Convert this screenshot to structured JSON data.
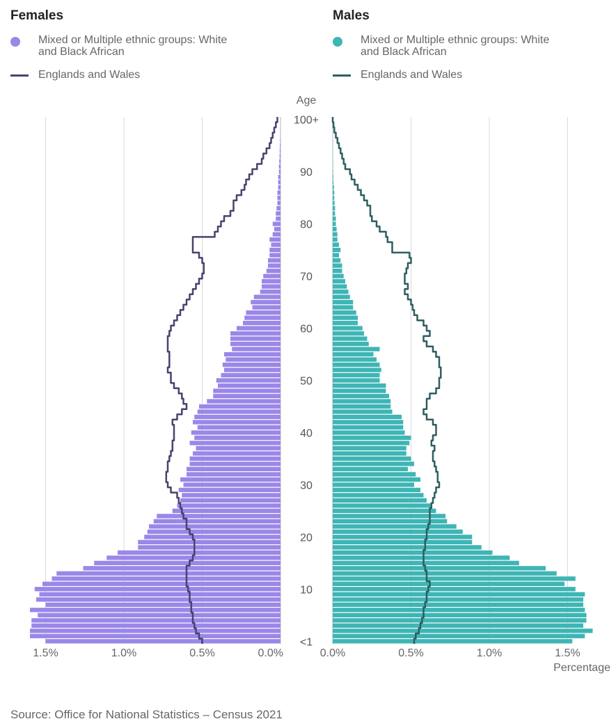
{
  "panels": {
    "females": {
      "title": "Females",
      "legend_group": "Mixed or Multiple ethnic groups: White and Black African",
      "legend_reference": "Englands and Wales",
      "bar_color": "#9b87e8",
      "line_color": "#4b416e"
    },
    "males": {
      "title": "Males",
      "legend_group": "Mixed or Multiple ethnic groups: White and Black African",
      "legend_reference": "Englands and Wales",
      "bar_color": "#3fb5b5",
      "line_color": "#2e5e60"
    }
  },
  "axis": {
    "age_label": "Age",
    "x_label": "Percentage"
  },
  "source": "Source: Office for National Statistics – Census 2021",
  "chart_data": {
    "type": "bar",
    "orientation": "horizontal-population-pyramid",
    "age_ticks": [
      "<1",
      "10",
      "20",
      "30",
      "40",
      "50",
      "60",
      "70",
      "80",
      "90",
      "100+"
    ],
    "x_ticks_females": [
      "1.5%",
      "1.0%",
      "0.5%",
      "0.0%"
    ],
    "x_ticks_males": [
      "0.0%",
      "0.5%",
      "1.0%",
      "1.5%"
    ],
    "xlim": [
      0,
      1.75
    ],
    "grid": true,
    "ages_note": "index 0 = age <1, index 100 = age 100+",
    "female_group": [
      1.5,
      1.6,
      1.6,
      1.59,
      1.59,
      1.55,
      1.6,
      1.5,
      1.56,
      1.54,
      1.57,
      1.52,
      1.46,
      1.43,
      1.26,
      1.19,
      1.11,
      1.04,
      0.91,
      0.91,
      0.87,
      0.85,
      0.84,
      0.81,
      0.79,
      0.69,
      0.66,
      0.64,
      0.63,
      0.65,
      0.62,
      0.64,
      0.6,
      0.6,
      0.58,
      0.58,
      0.56,
      0.54,
      0.58,
      0.55,
      0.57,
      0.53,
      0.56,
      0.55,
      0.53,
      0.52,
      0.47,
      0.43,
      0.43,
      0.4,
      0.41,
      0.38,
      0.36,
      0.37,
      0.35,
      0.36,
      0.31,
      0.32,
      0.32,
      0.32,
      0.28,
      0.24,
      0.23,
      0.22,
      0.18,
      0.19,
      0.17,
      0.13,
      0.12,
      0.12,
      0.11,
      0.09,
      0.08,
      0.08,
      0.07,
      0.07,
      0.06,
      0.07,
      0.05,
      0.04,
      0.05,
      0.03,
      0.03,
      0.025,
      0.02,
      0.02,
      0.02,
      0.015,
      0.015,
      0.015,
      0.01,
      0.01,
      0.008,
      0.006,
      0.005,
      0.004,
      0.003,
      0.002,
      0.002,
      0.001,
      0.001
    ],
    "female_ew": [
      0.5,
      0.52,
      0.54,
      0.55,
      0.56,
      0.56,
      0.57,
      0.57,
      0.58,
      0.58,
      0.59,
      0.6,
      0.6,
      0.6,
      0.6,
      0.58,
      0.56,
      0.55,
      0.55,
      0.55,
      0.56,
      0.58,
      0.6,
      0.6,
      0.62,
      0.63,
      0.64,
      0.65,
      0.66,
      0.7,
      0.72,
      0.73,
      0.73,
      0.72,
      0.72,
      0.71,
      0.7,
      0.69,
      0.69,
      0.68,
      0.68,
      0.68,
      0.69,
      0.66,
      0.63,
      0.6,
      0.62,
      0.63,
      0.65,
      0.68,
      0.7,
      0.7,
      0.72,
      0.71,
      0.71,
      0.71,
      0.72,
      0.72,
      0.72,
      0.71,
      0.7,
      0.68,
      0.66,
      0.64,
      0.62,
      0.6,
      0.58,
      0.56,
      0.54,
      0.52,
      0.5,
      0.49,
      0.49,
      0.5,
      0.52,
      0.56,
      0.56,
      0.56,
      0.42,
      0.4,
      0.38,
      0.36,
      0.32,
      0.3,
      0.3,
      0.28,
      0.25,
      0.23,
      0.22,
      0.2,
      0.18,
      0.15,
      0.12,
      0.11,
      0.09,
      0.07,
      0.06,
      0.05,
      0.04,
      0.03,
      0.02
    ],
    "male_group": [
      1.53,
      1.61,
      1.66,
      1.6,
      1.62,
      1.62,
      1.61,
      1.6,
      1.6,
      1.61,
      1.55,
      1.48,
      1.55,
      1.43,
      1.36,
      1.19,
      1.13,
      1.02,
      0.95,
      0.89,
      0.89,
      0.83,
      0.79,
      0.73,
      0.72,
      0.66,
      0.63,
      0.6,
      0.58,
      0.56,
      0.52,
      0.56,
      0.53,
      0.48,
      0.52,
      0.5,
      0.47,
      0.47,
      0.49,
      0.5,
      0.46,
      0.45,
      0.45,
      0.44,
      0.38,
      0.37,
      0.37,
      0.36,
      0.34,
      0.34,
      0.3,
      0.3,
      0.31,
      0.3,
      0.28,
      0.26,
      0.3,
      0.23,
      0.22,
      0.2,
      0.19,
      0.16,
      0.16,
      0.15,
      0.13,
      0.13,
      0.11,
      0.1,
      0.09,
      0.08,
      0.07,
      0.06,
      0.06,
      0.05,
      0.04,
      0.05,
      0.04,
      0.03,
      0.03,
      0.025,
      0.02,
      0.02,
      0.015,
      0.015,
      0.012,
      0.01,
      0.01,
      0.008,
      0.005,
      0.004,
      0.003,
      0.002,
      0.002,
      0.001,
      0.001,
      0.001,
      0.001,
      0.0,
      0.0,
      0.0,
      0.0
    ],
    "male_ew": [
      0.52,
      0.53,
      0.55,
      0.56,
      0.57,
      0.58,
      0.58,
      0.59,
      0.6,
      0.6,
      0.61,
      0.62,
      0.6,
      0.6,
      0.59,
      0.58,
      0.58,
      0.58,
      0.59,
      0.59,
      0.6,
      0.6,
      0.61,
      0.62,
      0.62,
      0.62,
      0.63,
      0.64,
      0.65,
      0.66,
      0.68,
      0.67,
      0.67,
      0.66,
      0.65,
      0.64,
      0.64,
      0.65,
      0.63,
      0.64,
      0.66,
      0.66,
      0.64,
      0.6,
      0.58,
      0.6,
      0.6,
      0.62,
      0.66,
      0.68,
      0.68,
      0.69,
      0.69,
      0.68,
      0.68,
      0.66,
      0.64,
      0.6,
      0.58,
      0.62,
      0.6,
      0.58,
      0.54,
      0.52,
      0.51,
      0.5,
      0.48,
      0.46,
      0.48,
      0.46,
      0.46,
      0.47,
      0.48,
      0.5,
      0.49,
      0.38,
      0.38,
      0.35,
      0.34,
      0.3,
      0.28,
      0.25,
      0.24,
      0.24,
      0.22,
      0.2,
      0.18,
      0.16,
      0.14,
      0.12,
      0.11,
      0.08,
      0.07,
      0.06,
      0.05,
      0.04,
      0.03,
      0.02,
      0.01,
      0.005,
      0.0
    ]
  }
}
